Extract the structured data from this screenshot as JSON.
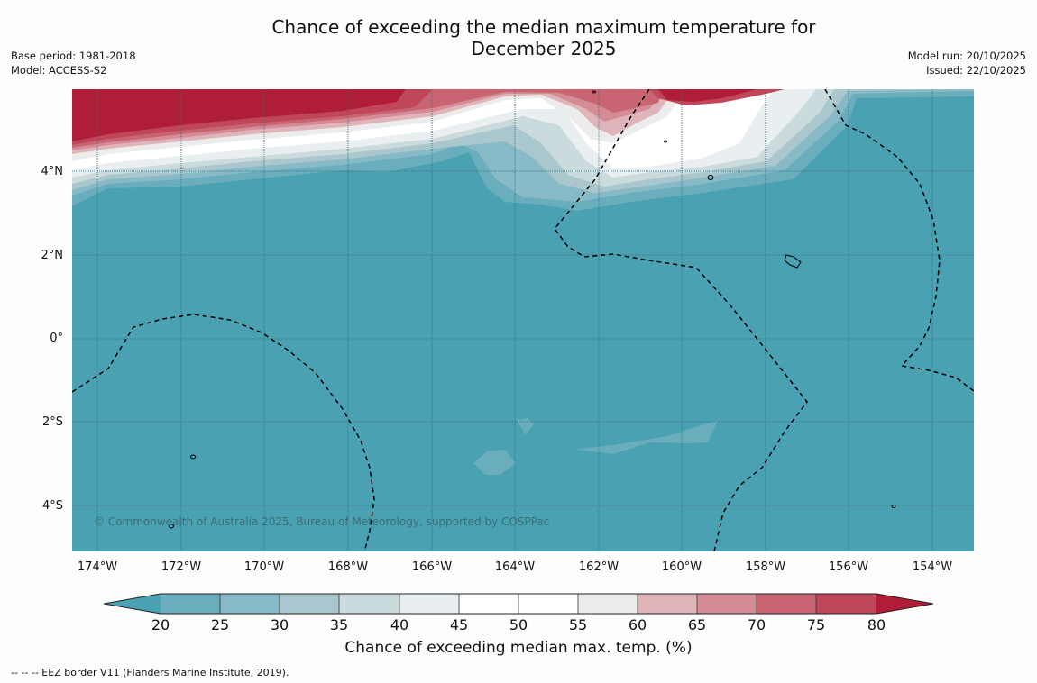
{
  "title": {
    "line1": "Chance of exceeding the median maximum temperature for",
    "line2": "December 2025"
  },
  "meta_left": {
    "base_period": "Base period: 1981-2018",
    "model": "Model: ACCESS-S2"
  },
  "meta_right": {
    "model_run": "Model run: 20/10/2025",
    "issued": "Issued: 22/10/2025"
  },
  "map": {
    "copyright": "© Commonwealth of Australia 2025, Bureau of Meteorology, supported by COSPPac",
    "lat_labels": [
      "4°N",
      "2°N",
      "0°",
      "2°S",
      "4°S"
    ],
    "lon_labels": [
      "174°W",
      "172°W",
      "170°W",
      "168°W",
      "166°W",
      "164°W",
      "162°W",
      "160°W",
      "158°W",
      "156°W",
      "154°W"
    ]
  },
  "colorbar": {
    "ticks": [
      "20",
      "25",
      "30",
      "35",
      "40",
      "45",
      "50",
      "55",
      "60",
      "65",
      "70",
      "75",
      "80"
    ],
    "colors": {
      "below_20": "#49a1b2",
      "c20_25": "#6aadbc",
      "c25_30": "#88b9c6",
      "c30_35": "#a9c7cd",
      "c35_40": "#cbdadc",
      "c40_45": "#e9eff0",
      "c45_55": "#ffffff",
      "c55_60": "#ececec",
      "c60_65": "#e0b5ba",
      "c65_70": "#d58c97",
      "c70_75": "#c96472",
      "c75_80": "#bf4759",
      "above_80": "#b01d39"
    },
    "label": "Chance of exceeding median max. temp. (%)"
  },
  "footnote": "--  --  -- EEZ border V11 (Flanders Marine Institute, 2019)."
}
